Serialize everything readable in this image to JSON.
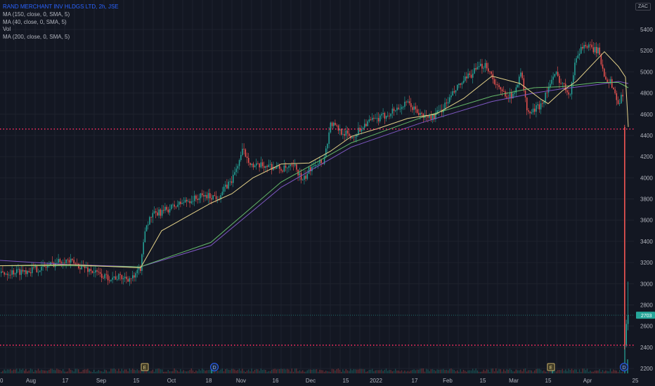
{
  "header": {
    "symbol_line": "RAND MERCHANT INV HLDGS LTD, 2h, JSE",
    "indicators": [
      "MA (150, close, 0, SMA, 5)",
      "MA (40, close, 0, SMA, 5)",
      "Vol",
      "MA (200, close, 0, SMA, 5)"
    ],
    "currency_badge": "ZAC"
  },
  "colors": {
    "background": "#131722",
    "up": "#26a69a",
    "down": "#ef5350",
    "ma40": "#e6d38a",
    "ma150": "#66bb6a",
    "ma200": "#7e57c2",
    "support_line": "#ff2e63",
    "last_price": "#26a69a",
    "grid": "#1e222d"
  },
  "chart_data": {
    "type": "candlestick",
    "title": "RAND MERCHANT INV HLDGS LTD, 2h, JSE",
    "x_ticks": [
      "20",
      "Aug",
      "17",
      "Sep",
      "15",
      "Oct",
      "18",
      "Nov",
      "16",
      "Dec",
      "15",
      "2022",
      "17",
      "Feb",
      "15",
      "Mar",
      "15",
      "Apr",
      "25"
    ],
    "y_ticks": [
      5400,
      5200,
      5000,
      4800,
      4600,
      4400,
      4200,
      4000,
      3800,
      3600,
      3400,
      3200,
      3000,
      2800,
      2600,
      2400,
      2200
    ],
    "ylim": [
      2140,
      5520
    ],
    "last_price": {
      "value": 2703,
      "label": "2703"
    },
    "horizontal_lines": [
      4460,
      2420
    ],
    "event_markers": [
      {
        "label": "E",
        "x_tick": "15",
        "near": "Sep"
      },
      {
        "label": "D",
        "x_tick": "18",
        "near": "Oct"
      },
      {
        "label": "E",
        "x_tick": "15",
        "near": "Mar"
      },
      {
        "label": "D",
        "x_tick": "25",
        "near": "Apr"
      }
    ],
    "close_path": {
      "x": [
        0,
        30,
        60,
        90,
        120,
        150,
        170,
        190,
        200,
        205,
        215,
        230,
        260,
        290,
        310,
        330,
        345,
        360,
        380,
        400,
        420,
        430,
        445,
        460,
        470,
        480,
        500,
        520,
        540,
        560,
        580,
        600,
        615,
        630,
        650,
        670,
        690,
        710,
        730,
        740,
        750,
        760,
        770,
        780,
        790,
        800,
        810,
        820,
        830,
        840,
        850,
        860,
        870,
        880,
        885,
        888,
        890,
        892,
        894
      ],
      "y": [
        3100,
        3120,
        3150,
        3230,
        3150,
        3060,
        3060,
        3050,
        3160,
        3520,
        3640,
        3680,
        3770,
        3830,
        3820,
        3990,
        4260,
        4100,
        4120,
        4080,
        4100,
        3960,
        4140,
        4160,
        4520,
        4460,
        4380,
        4520,
        4560,
        4640,
        4700,
        4580,
        4570,
        4660,
        4850,
        4980,
        5080,
        4820,
        4760,
        5020,
        4600,
        4640,
        4700,
        4860,
        4980,
        4880,
        4800,
        5160,
        5260,
        5220,
        5200,
        4960,
        4880,
        4680,
        4800,
        4500,
        2420,
        2620,
        2703
      ]
    },
    "ma40_path": {
      "x": [
        0,
        100,
        200,
        230,
        300,
        330,
        360,
        400,
        440,
        470,
        500,
        540,
        580,
        620,
        660,
        700,
        740,
        770,
        780,
        800,
        820,
        840,
        860,
        880,
        890,
        894
      ],
      "y": [
        3170,
        3180,
        3150,
        3500,
        3760,
        3850,
        4000,
        4130,
        4140,
        4250,
        4390,
        4470,
        4560,
        4600,
        4750,
        4960,
        4890,
        4740,
        4700,
        4820,
        4910,
        5050,
        5190,
        5050,
        4950,
        4480
      ]
    },
    "ma150_path": {
      "x": [
        0,
        100,
        200,
        300,
        400,
        500,
        600,
        700,
        760,
        800,
        850,
        880,
        894
      ],
      "y": [
        3170,
        3170,
        3160,
        3390,
        3960,
        4330,
        4570,
        4770,
        4850,
        4860,
        4900,
        4900,
        4850
      ]
    },
    "ma200_path": {
      "x": [
        0,
        100,
        200,
        300,
        400,
        500,
        600,
        700,
        760,
        800,
        850,
        880,
        894
      ],
      "y": [
        3220,
        3180,
        3160,
        3360,
        3910,
        4290,
        4520,
        4720,
        4800,
        4840,
        4880,
        4910,
        4890
      ]
    },
    "volume_spikes": [
      {
        "x": 888,
        "rel": 1.0
      },
      {
        "x": 892,
        "rel": 0.5
      },
      {
        "x": 300,
        "rel": 0.25
      },
      {
        "x": 785,
        "rel": 0.22
      }
    ]
  }
}
